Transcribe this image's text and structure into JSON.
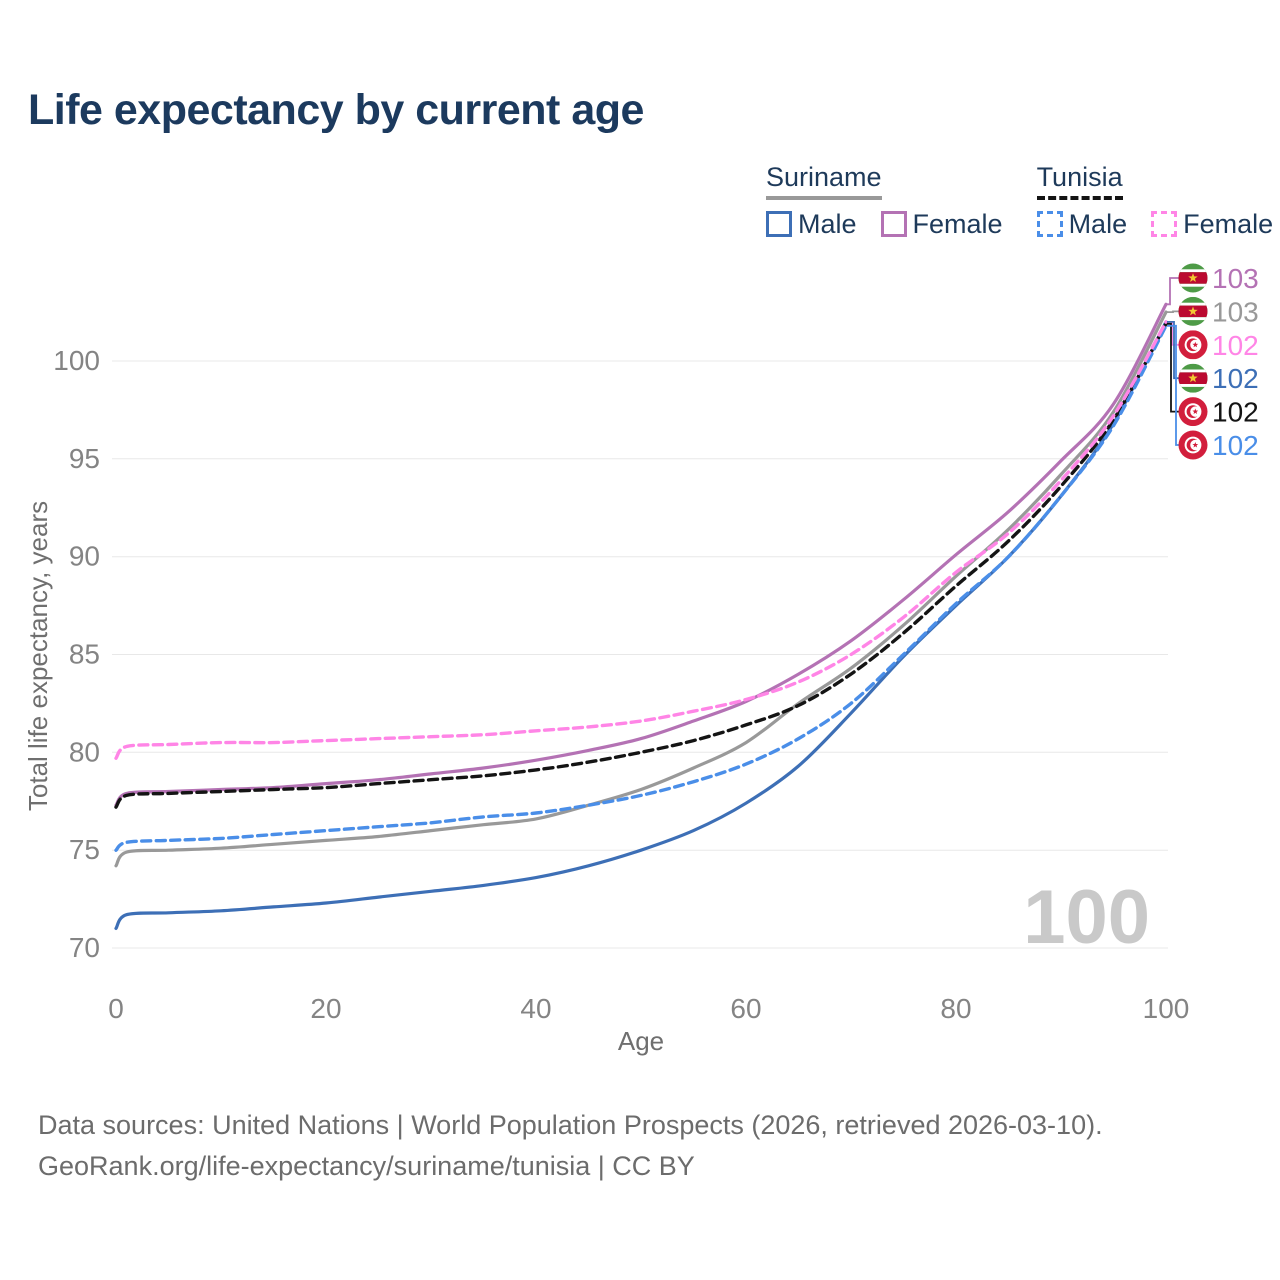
{
  "title": "Life expectancy by current age",
  "legend": {
    "groups": [
      {
        "country": "Suriname",
        "line_style": "solid",
        "underline_color": "#999999",
        "items": [
          {
            "label": "Male",
            "color": "#3d6fb6",
            "dashed": false
          },
          {
            "label": "Female",
            "color": "#b472b4",
            "dashed": false
          }
        ]
      },
      {
        "country": "Tunisia",
        "line_style": "dashed",
        "underline_color": "#141414",
        "items": [
          {
            "label": "Male",
            "color": "#4a8ee8",
            "dashed": true
          },
          {
            "label": "Female",
            "color": "#ff85e6",
            "dashed": true
          }
        ]
      }
    ]
  },
  "chart_data": {
    "type": "line",
    "xlabel": "Age",
    "ylabel": "Total life expectancy, years",
    "watermark": "100",
    "x_ticks": [
      0,
      20,
      40,
      60,
      80,
      100
    ],
    "y_ticks": [
      70,
      75,
      80,
      85,
      90,
      95,
      100
    ],
    "xlim": [
      0,
      100
    ],
    "ylim": [
      68.5,
      103.5
    ],
    "grid": "horizontal",
    "x": [
      0,
      1,
      5,
      10,
      15,
      20,
      25,
      30,
      35,
      40,
      45,
      50,
      55,
      60,
      65,
      70,
      75,
      80,
      85,
      90,
      95,
      100
    ],
    "series": [
      {
        "name": "Suriname",
        "sex": "both",
        "color": "#999999",
        "dash": "solid",
        "values": [
          74.2,
          74.9,
          75.0,
          75.1,
          75.3,
          75.5,
          75.7,
          76.0,
          76.3,
          76.6,
          77.3,
          78.1,
          79.2,
          80.5,
          82.5,
          84.3,
          86.5,
          89.0,
          91.4,
          94.2,
          97.4,
          102.5
        ]
      },
      {
        "name": "Suriname Female",
        "sex": "female",
        "color": "#b472b4",
        "dash": "solid",
        "values": [
          77.3,
          77.9,
          78.0,
          78.1,
          78.2,
          78.4,
          78.6,
          78.9,
          79.2,
          79.6,
          80.1,
          80.7,
          81.6,
          82.6,
          84.0,
          85.7,
          87.8,
          90.1,
          92.3,
          94.9,
          97.8,
          102.9
        ]
      },
      {
        "name": "Suriname Male",
        "sex": "male",
        "color": "#3d6fb6",
        "dash": "solid",
        "values": [
          71.0,
          71.7,
          71.8,
          71.9,
          72.1,
          72.3,
          72.6,
          72.9,
          73.2,
          73.6,
          74.2,
          75.0,
          76.0,
          77.4,
          79.3,
          82.0,
          84.9,
          87.5,
          90.0,
          93.1,
          96.8,
          102.0
        ]
      },
      {
        "name": "Tunisia",
        "sex": "both",
        "color": "#141414",
        "dash": "dashed",
        "values": [
          77.2,
          77.8,
          77.9,
          78.0,
          78.1,
          78.2,
          78.4,
          78.6,
          78.8,
          79.1,
          79.5,
          80.0,
          80.6,
          81.4,
          82.4,
          84.0,
          86.1,
          88.5,
          90.8,
          93.6,
          97.0,
          101.9
        ]
      },
      {
        "name": "Tunisia Male",
        "sex": "male",
        "color": "#4a8ee8",
        "dash": "dashed",
        "values": [
          75.0,
          75.4,
          75.5,
          75.6,
          75.8,
          76.0,
          76.2,
          76.4,
          76.7,
          76.9,
          77.3,
          77.8,
          78.5,
          79.4,
          80.7,
          82.5,
          85.0,
          87.6,
          90.0,
          93.1,
          96.7,
          101.8
        ]
      },
      {
        "name": "Tunisia Female",
        "sex": "female",
        "color": "#ff85e6",
        "dash": "dashed",
        "values": [
          79.7,
          80.3,
          80.4,
          80.5,
          80.5,
          80.6,
          80.7,
          80.8,
          80.9,
          81.1,
          81.3,
          81.6,
          82.1,
          82.7,
          83.6,
          85.0,
          86.9,
          89.2,
          91.2,
          93.9,
          97.2,
          102.0
        ]
      }
    ],
    "end_labels": [
      {
        "series": "Suriname Female",
        "flag": "suriname",
        "value": "103"
      },
      {
        "series": "Suriname",
        "flag": "suriname",
        "value": "103"
      },
      {
        "series": "Tunisia Female",
        "flag": "tunisia",
        "value": "102"
      },
      {
        "series": "Suriname Male",
        "flag": "suriname",
        "value": "102"
      },
      {
        "series": "Tunisia",
        "flag": "tunisia",
        "value": "102"
      },
      {
        "series": "Tunisia Male",
        "flag": "tunisia",
        "value": "102"
      }
    ],
    "flag_colors": {
      "suriname_green": "#4e9b47",
      "suriname_red": "#bb0a30",
      "suriname_star": "#f2c832",
      "tunisia_red": "#d21e3c"
    }
  },
  "footer": {
    "line1": "Data sources: United Nations | World Population Prospects (2026, retrieved 2026-03-10).",
    "line2": "GeoRank.org/life-expectancy/suriname/tunisia | CC BY"
  }
}
